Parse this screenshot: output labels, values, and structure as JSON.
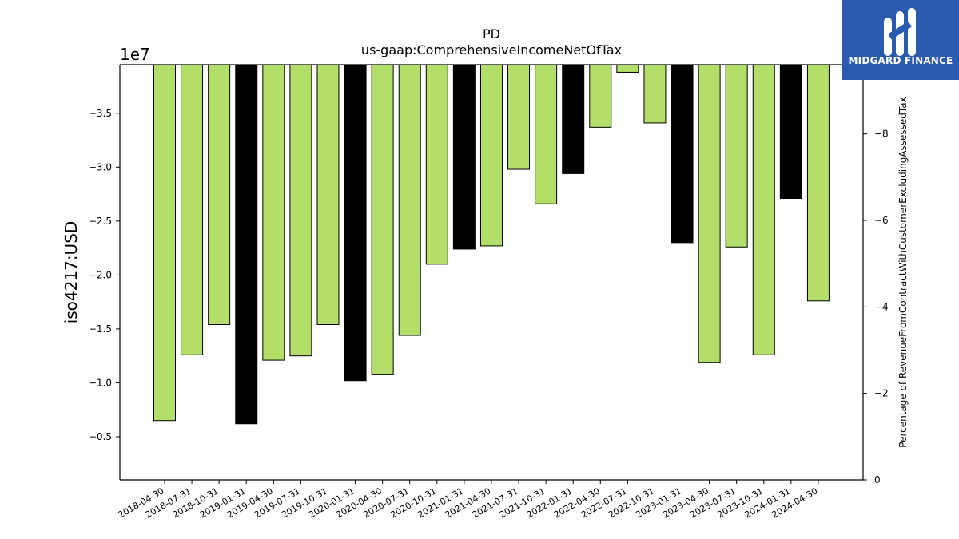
{
  "chart_data": {
    "type": "bar",
    "title": "PD",
    "subtitle": "us-gaap:ComprehensiveIncomeNetOfTax",
    "ylabel": "iso4217:USD",
    "y_offset_label": "1e7",
    "y2label": "Percentage of RevenueFromContractWithCustomerExcludingAssessedTax",
    "ylim": [
      -39500000.0,
      -1000000.0
    ],
    "y_ticks": [
      -0.5,
      -1.0,
      -1.5,
      -2.0,
      -2.5,
      -3.0,
      -3.5
    ],
    "y_tick_labels": [
      "−0.5",
      "−1.0",
      "−1.5",
      "−2.0",
      "−2.5",
      "−3.0",
      "−3.5"
    ],
    "y2lim": [
      0,
      -9.6
    ],
    "y2_ticks": [
      0,
      -2,
      -4,
      -6,
      -8
    ],
    "y2_tick_labels": [
      "0",
      "−2",
      "−4",
      "−6",
      "−8"
    ],
    "categories": [
      "2018-04-30",
      "2018-07-31",
      "2018-10-31",
      "2019-01-31",
      "2019-04-30",
      "2019-07-31",
      "2019-10-31",
      "2020-01-31",
      "2020-04-30",
      "2020-07-31",
      "2020-10-31",
      "2021-01-31",
      "2021-04-30",
      "2021-07-31",
      "2021-10-31",
      "2022-01-31",
      "2022-04-30",
      "2022-07-31",
      "2022-10-31",
      "2023-01-31",
      "2023-04-30",
      "2023-07-31",
      "2023-10-31",
      "2024-01-31",
      "2024-04-30"
    ],
    "values": [
      -6500000,
      -12600000,
      -15400000,
      -6200000,
      -12100000,
      -12500000,
      -15400000,
      -10200000,
      -10800000,
      -14400000,
      -21000000,
      -22400000,
      -22700000,
      -29800000,
      -26600000,
      -29400000,
      -33700000,
      -38800000,
      -34100000,
      -23000000,
      -11900000,
      -22600000,
      -12600000,
      -27100000,
      -17600000
    ],
    "highlight": [
      false,
      false,
      false,
      true,
      false,
      false,
      false,
      true,
      false,
      false,
      false,
      true,
      false,
      false,
      false,
      true,
      false,
      false,
      false,
      true,
      false,
      false,
      false,
      true,
      false
    ],
    "colors": {
      "default": "#b3de69",
      "highlight": "#000000",
      "edge": "#000000"
    },
    "grid": false,
    "legend": "none"
  },
  "brand": {
    "name": "MIDGARD FINANCE",
    "background": "#2a5aad",
    "icon": "midgard-logo-icon"
  }
}
